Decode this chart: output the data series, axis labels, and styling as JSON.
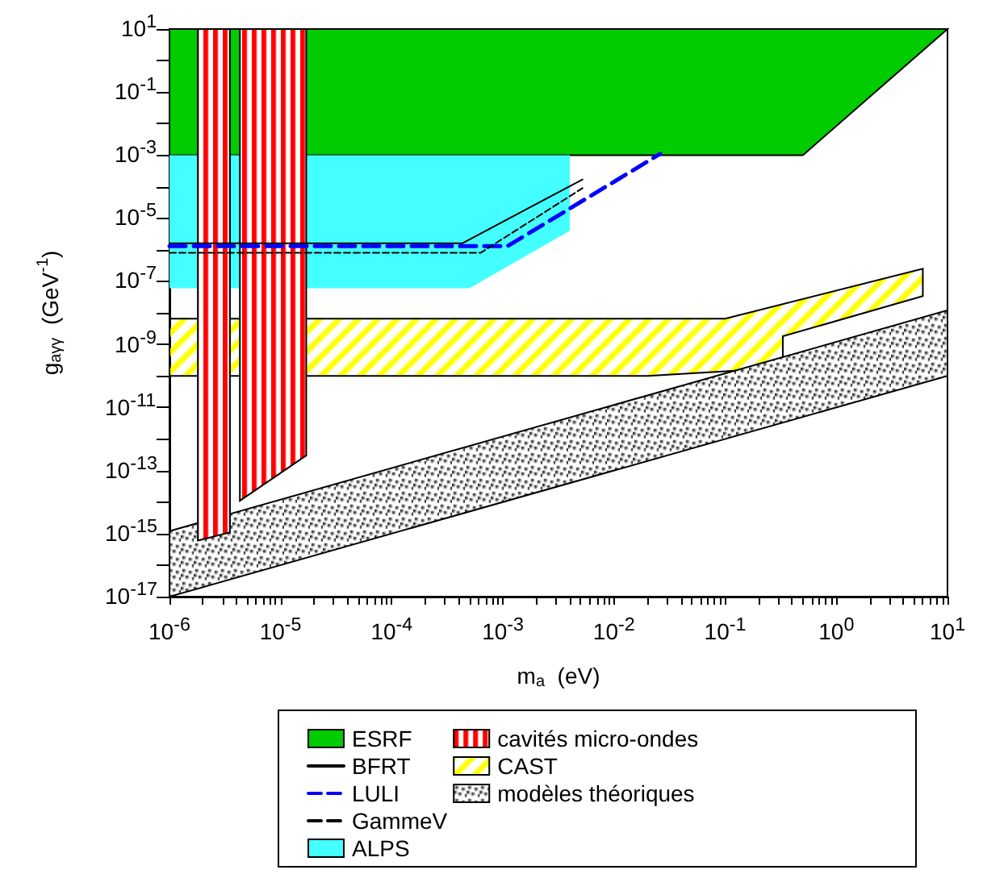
{
  "chart_data": {
    "type": "area",
    "xlabel": "m$_{a}$  (eV)",
    "ylabel": "g$_{aγγ}$  (GeV$^{-1}$)",
    "log": "xy",
    "grid": false,
    "legend": "bottom",
    "xlim": [
      1e-06,
      10
    ],
    "ylim": [
      1e-17,
      10
    ],
    "xticks": [
      {
        "value": 1e-06,
        "label": "10$^{-6}$"
      },
      {
        "value": 2e-06,
        "label": null
      },
      {
        "value": 3e-06,
        "label": null
      },
      {
        "value": 4e-06,
        "label": null
      },
      {
        "value": 5e-06,
        "label": null
      },
      {
        "value": 6e-06,
        "label": null
      },
      {
        "value": 7e-06,
        "label": null
      },
      {
        "value": 8e-06,
        "label": null
      },
      {
        "value": 9e-06,
        "label": null
      },
      {
        "value": 1e-05,
        "label": "10$^{-5}$"
      },
      {
        "value": 2e-05,
        "label": null
      },
      {
        "value": 3e-05,
        "label": null
      },
      {
        "value": 4e-05,
        "label": null
      },
      {
        "value": 5e-05,
        "label": null
      },
      {
        "value": 6e-05,
        "label": null
      },
      {
        "value": 7e-05,
        "label": null
      },
      {
        "value": 8e-05,
        "label": null
      },
      {
        "value": 9e-05,
        "label": null
      },
      {
        "value": 0.0001,
        "label": "10$^{-4}$"
      },
      {
        "value": 0.0002,
        "label": null
      },
      {
        "value": 0.0003,
        "label": null
      },
      {
        "value": 0.0004,
        "label": null
      },
      {
        "value": 0.0005,
        "label": null
      },
      {
        "value": 0.0006,
        "label": null
      },
      {
        "value": 0.0007,
        "label": null
      },
      {
        "value": 0.0008,
        "label": null
      },
      {
        "value": 0.0009,
        "label": null
      },
      {
        "value": 0.001,
        "label": "10$^{-3}$"
      },
      {
        "value": 0.002,
        "label": null
      },
      {
        "value": 0.003,
        "label": null
      },
      {
        "value": 0.004,
        "label": null
      },
      {
        "value": 0.005,
        "label": null
      },
      {
        "value": 0.006,
        "label": null
      },
      {
        "value": 0.007,
        "label": null
      },
      {
        "value": 0.008,
        "label": null
      },
      {
        "value": 0.009,
        "label": null
      },
      {
        "value": 0.01,
        "label": "10$^{-2}$"
      },
      {
        "value": 0.02,
        "label": null
      },
      {
        "value": 0.03,
        "label": null
      },
      {
        "value": 0.04,
        "label": null
      },
      {
        "value": 0.05,
        "label": null
      },
      {
        "value": 0.06,
        "label": null
      },
      {
        "value": 0.07,
        "label": null
      },
      {
        "value": 0.08,
        "label": null
      },
      {
        "value": 0.09,
        "label": null
      },
      {
        "value": 0.1,
        "label": "10$^{-1}$"
      },
      {
        "value": 0.2,
        "label": null
      },
      {
        "value": 0.3,
        "label": null
      },
      {
        "value": 0.4,
        "label": null
      },
      {
        "value": 0.5,
        "label": null
      },
      {
        "value": 0.6,
        "label": null
      },
      {
        "value": 0.7,
        "label": null
      },
      {
        "value": 0.8,
        "label": null
      },
      {
        "value": 0.9,
        "label": null
      },
      {
        "value": 1,
        "label": "10$^{0}$"
      },
      {
        "value": 2,
        "label": null
      },
      {
        "value": 3,
        "label": null
      },
      {
        "value": 4,
        "label": null
      },
      {
        "value": 5,
        "label": null
      },
      {
        "value": 6,
        "label": null
      },
      {
        "value": 7,
        "label": null
      },
      {
        "value": 8,
        "label": null
      },
      {
        "value": 9,
        "label": null
      },
      {
        "value": 10,
        "label": "10$^{1}$"
      }
    ],
    "yticks": [
      {
        "value": 10,
        "label": "10$^{1}$"
      },
      {
        "value": 1,
        "label": null
      },
      {
        "value": 0.1,
        "label": "10$^{-1}$"
      },
      {
        "value": 0.01,
        "label": null
      },
      {
        "value": 0.001,
        "label": "10$^{-3}$"
      },
      {
        "value": 0.0001,
        "label": null
      },
      {
        "value": 1e-05,
        "label": "10$^{-5}$"
      },
      {
        "value": 1e-06,
        "label": null
      },
      {
        "value": 1e-07,
        "label": "10$^{-7}$"
      },
      {
        "value": 1e-08,
        "label": null
      },
      {
        "value": 1e-09,
        "label": "10$^{-9}$"
      },
      {
        "value": 1e-10,
        "label": null
      },
      {
        "value": 1e-11,
        "label": "10$^{-11}$"
      },
      {
        "value": 1e-12,
        "label": null
      },
      {
        "value": 1e-13,
        "label": "10$^{-13}$"
      },
      {
        "value": 1e-14,
        "label": null
      },
      {
        "value": 1e-15,
        "label": "10$^{-15}$"
      },
      {
        "value": 1e-16,
        "label": null
      },
      {
        "value": 1e-17,
        "label": "10$^{-17}$"
      }
    ],
    "series": [
      {
        "name": "ESRF",
        "color": "#00cc00",
        "x": [
          1e-06,
          10,
          0.5,
          1e-06
        ],
        "values": [
          10,
          10,
          0.001,
          0.001
        ]
      },
      {
        "name": "BFRT",
        "type": "line",
        "color": "#000000",
        "line_style": "solid",
        "x": [
          1e-06,
          0.00043,
          0.0052
        ],
        "values": [
          1.6e-06,
          1.6e-06,
          0.00017
        ]
      },
      {
        "name": "LULI",
        "type": "line",
        "color": "#0000ff",
        "line_style": "dashed",
        "x": [
          1e-06,
          0.0011,
          0.026
        ],
        "values": [
          1.3e-06,
          1.3e-06,
          0.0011
        ]
      },
      {
        "name": "GammeV",
        "type": "line",
        "color": "#000000",
        "line_style": "dashed",
        "x": [
          1e-06,
          0.00063,
          0.0052
        ],
        "values": [
          8e-07,
          8e-07,
          9e-05
        ]
      },
      {
        "name": "ALPS",
        "color": "#44ffff",
        "x": [
          1e-06,
          0.004,
          0.004,
          0.0005,
          1e-06
        ],
        "values": [
          0.001,
          0.001,
          4e-06,
          6e-08,
          6e-08
        ]
      },
      {
        "name": "cavités micro-ondes",
        "color": "#ff0000",
        "x": [
          1.8e-06,
          3.5e-06,
          3.5e-06,
          1.8e-06,
          null,
          4.3e-06,
          1.7e-05,
          1.7e-05,
          4.3e-06
        ],
        "values": [
          10,
          10,
          1.1e-15,
          6e-16,
          null,
          10,
          10,
          3e-13,
          1.1e-14
        ]
      },
      {
        "name": "CAST",
        "color": "#ffff00",
        "x": [
          1e-06,
          0.1,
          6,
          6,
          0.33,
          0.33,
          0.02,
          1e-06
        ],
        "values": [
          6.5e-09,
          6.5e-09,
          2.5e-07,
          3.4e-08,
          1.8e-09,
          1.8e-10,
          1e-10,
          1e-10
        ]
      },
      {
        "name": "modèles théoriques",
        "color": "#000000",
        "x": [
          1e-06,
          10,
          10,
          1e-06
        ],
        "values": [
          1.2e-15,
          1.2e-08,
          1e-10,
          1e-17
        ]
      }
    ]
  }
}
